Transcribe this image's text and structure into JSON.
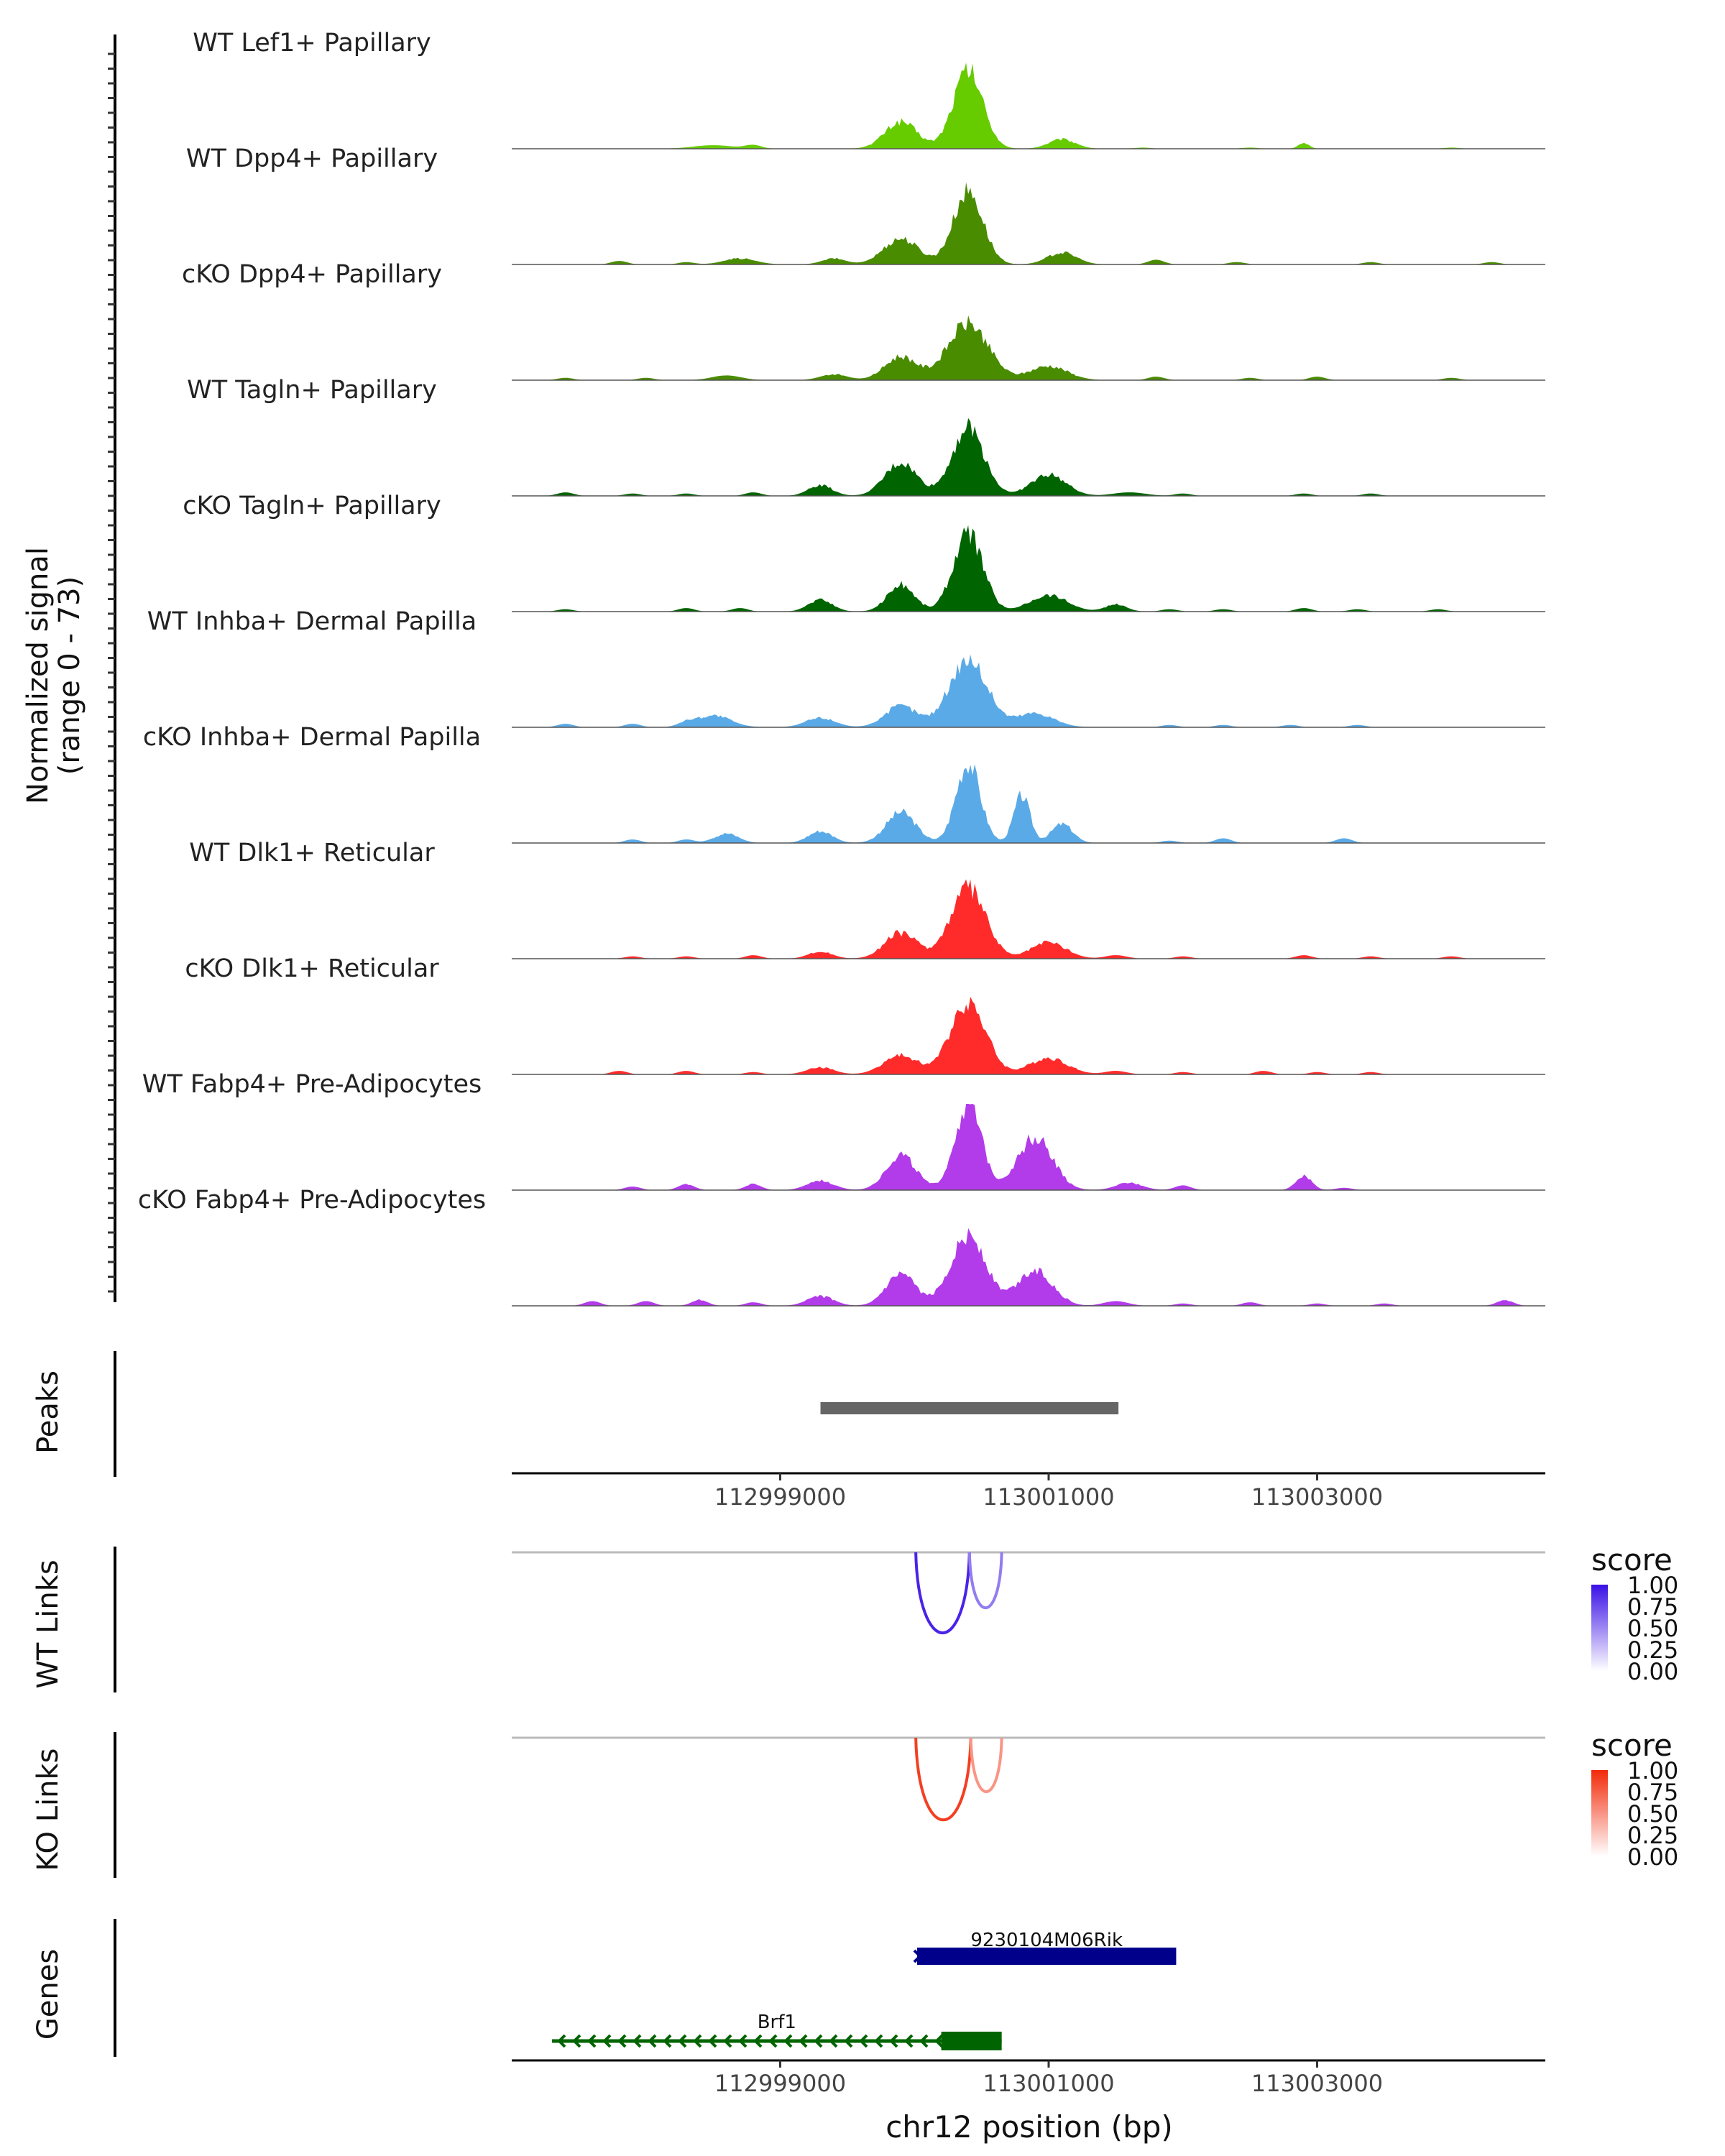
{
  "chart_data": {
    "type": "area",
    "title": "",
    "xlabel": "chr12 position (bp)",
    "region": {
      "chrom": "chr12",
      "start": 112997000,
      "end": 113004700
    },
    "x_ticks": [
      "112999000",
      "113001000",
      "113003000"
    ],
    "x_tick_values": [
      112999000,
      113001000,
      113003000
    ],
    "coverage": {
      "ylabel_line1": "Normalized signal",
      "ylabel_line2": "(range 0 - 73)",
      "ylim": [
        0,
        73
      ],
      "tracks": [
        {
          "name": "WT Lef1+ Papillary",
          "color": "#66cc00",
          "peaks": [
            [
              113000400,
              66,
              110
            ],
            [
              112999900,
              23,
              120
            ],
            [
              113001100,
              8,
              100
            ],
            [
              112998500,
              3,
              150
            ],
            [
              113002900,
              5,
              40
            ]
          ],
          "noise": [
            [
              112998800,
              3
            ],
            [
              113001700,
              1
            ],
            [
              113002500,
              1
            ],
            [
              113004000,
              1
            ]
          ]
        },
        {
          "name": "WT Dpp4+ Papillary",
          "color": "#4a8c00",
          "peaks": [
            [
              113000400,
              62,
              110
            ],
            [
              112999900,
              22,
              130
            ],
            [
              113001100,
              10,
              110
            ],
            [
              112999400,
              5,
              90
            ],
            [
              112998700,
              5,
              120
            ]
          ],
          "noise": [
            [
              112997800,
              3
            ],
            [
              112998300,
              2
            ],
            [
              113001800,
              4
            ],
            [
              113002400,
              2
            ],
            [
              113003400,
              2
            ],
            [
              113004300,
              2
            ]
          ]
        },
        {
          "name": "cKO Dpp4+ Papillary",
          "color": "#4a8c00",
          "peaks": [
            [
              113000400,
              48,
              150
            ],
            [
              112999900,
              20,
              120
            ],
            [
              113001000,
              12,
              140
            ],
            [
              112999400,
              5,
              100
            ],
            [
              112998600,
              4,
              110
            ]
          ],
          "noise": [
            [
              112997400,
              2
            ],
            [
              112998000,
              2
            ],
            [
              113001800,
              3
            ],
            [
              113002500,
              2
            ],
            [
              113003000,
              3
            ],
            [
              113004000,
              2
            ]
          ]
        },
        {
          "name": "WT Tagln+ Papillary",
          "color": "#006400",
          "peaks": [
            [
              113000400,
              58,
              120
            ],
            [
              112999900,
              28,
              120
            ],
            [
              113001000,
              18,
              130
            ],
            [
              112999300,
              9,
              90
            ],
            [
              113001600,
              3,
              120
            ]
          ],
          "noise": [
            [
              112997400,
              3
            ],
            [
              112997900,
              2
            ],
            [
              112998300,
              2
            ],
            [
              112998800,
              3
            ],
            [
              113002000,
              2
            ],
            [
              113002900,
              2
            ],
            [
              113003400,
              2
            ]
          ]
        },
        {
          "name": "cKO Tagln+ Papillary",
          "color": "#006400",
          "peaks": [
            [
              113000400,
              66,
              110
            ],
            [
              112999900,
              23,
              100
            ],
            [
              113001000,
              14,
              140
            ],
            [
              112999300,
              10,
              90
            ],
            [
              113001500,
              6,
              80
            ]
          ],
          "noise": [
            [
              112997400,
              2
            ],
            [
              112998300,
              3
            ],
            [
              112998700,
              3
            ],
            [
              113001900,
              2
            ],
            [
              113002300,
              2
            ],
            [
              113002900,
              3
            ],
            [
              113003300,
              2
            ],
            [
              113003900,
              2
            ]
          ]
        },
        {
          "name": "WT Inhba+ Dermal Papilla",
          "color": "#5aaae8",
          "peaks": [
            [
              113000400,
              58,
              140
            ],
            [
              112999900,
              18,
              120
            ],
            [
              113000900,
              12,
              140
            ],
            [
              112999300,
              8,
              110
            ],
            [
              112998500,
              10,
              130
            ]
          ],
          "noise": [
            [
              112997400,
              3
            ],
            [
              112997900,
              3
            ],
            [
              112998300,
              3
            ],
            [
              113001900,
              2
            ],
            [
              113002300,
              2
            ],
            [
              113002800,
              2
            ],
            [
              113003300,
              2
            ]
          ]
        },
        {
          "name": "cKO Inhba+ Dermal Papilla",
          "color": "#5aaae8",
          "peaks": [
            [
              113000400,
              68,
              90
            ],
            [
              112999900,
              26,
              110
            ],
            [
              113000800,
              40,
              60
            ],
            [
              113001100,
              16,
              80
            ],
            [
              112999300,
              10,
              90
            ],
            [
              112998600,
              8,
              90
            ]
          ],
          "noise": [
            [
              112997900,
              3
            ],
            [
              112998300,
              3
            ],
            [
              113001900,
              2
            ],
            [
              113002300,
              4
            ],
            [
              113003200,
              4
            ]
          ]
        },
        {
          "name": "WT Dlk1+ Reticular",
          "color": "#ff2b2b",
          "peaks": [
            [
              113000400,
              60,
              130
            ],
            [
              112999900,
              22,
              120
            ],
            [
              113001000,
              14,
              130
            ],
            [
              112999300,
              6,
              90
            ],
            [
              113001500,
              3,
              80
            ]
          ],
          "noise": [
            [
              112997900,
              2
            ],
            [
              112998300,
              2
            ],
            [
              112998800,
              3
            ],
            [
              113002000,
              2
            ],
            [
              113002900,
              3
            ],
            [
              113003400,
              2
            ],
            [
              113004000,
              2
            ]
          ]
        },
        {
          "name": "cKO Dlk1+ Reticular",
          "color": "#ff2b2b",
          "peaks": [
            [
              113000400,
              62,
              130
            ],
            [
              112999900,
              16,
              130
            ],
            [
              113001000,
              14,
              140
            ],
            [
              112999300,
              6,
              100
            ],
            [
              113001500,
              3,
              80
            ]
          ],
          "noise": [
            [
              112997800,
              3
            ],
            [
              112998300,
              3
            ],
            [
              112998800,
              2
            ],
            [
              113002000,
              2
            ],
            [
              113002600,
              3
            ],
            [
              113003000,
              2
            ],
            [
              113003400,
              2
            ]
          ]
        },
        {
          "name": "WT Fabp4+ Pre-Adipocytes",
          "color": "#b23bea",
          "peaks": [
            [
              113000400,
              72,
              100
            ],
            [
              112999900,
              30,
              110
            ],
            [
              113000900,
              45,
              130
            ],
            [
              112999300,
              8,
              100
            ],
            [
              113001600,
              6,
              100
            ],
            [
              113002900,
              12,
              60
            ]
          ],
          "noise": [
            [
              112997900,
              3
            ],
            [
              112998300,
              5
            ],
            [
              112998800,
              5
            ],
            [
              113002000,
              4
            ],
            [
              113003200,
              2
            ]
          ]
        },
        {
          "name": "cKO Fabp4+ Pre-Adipocytes",
          "color": "#b23bea",
          "peaks": [
            [
              113000400,
              60,
              130
            ],
            [
              112999900,
              26,
              110
            ],
            [
              113000900,
              30,
              130
            ],
            [
              112999300,
              8,
              100
            ],
            [
              113001500,
              4,
              90
            ]
          ],
          "noise": [
            [
              112997600,
              4
            ],
            [
              112998000,
              4
            ],
            [
              112998400,
              5
            ],
            [
              112998800,
              3
            ],
            [
              113002000,
              2
            ],
            [
              113002500,
              3
            ],
            [
              113003000,
              2
            ],
            [
              113003500,
              2
            ],
            [
              113004400,
              5
            ]
          ]
        }
      ]
    },
    "peaks_track": {
      "label": "Peaks",
      "color": "#666666",
      "ranges": [
        [
          112999300,
          113001520
        ]
      ]
    },
    "links": [
      {
        "label": "WT Links",
        "legend_title": "score",
        "color_high": "#3a10e6",
        "color_low": "#ffffff",
        "legend_ticks": [
          "1.00",
          "0.75",
          "0.50",
          "0.25",
          "0.00"
        ],
        "arcs": [
          {
            "start": 113000010,
            "end": 113000410,
            "score": 0.92
          },
          {
            "start": 113000410,
            "end": 113000650,
            "score": 0.55
          }
        ]
      },
      {
        "label": "KO Links",
        "legend_title": "score",
        "color_high": "#f22a0a",
        "color_low": "#ffffff",
        "legend_ticks": [
          "1.00",
          "0.75",
          "0.50",
          "0.25",
          "0.00"
        ],
        "arcs": [
          {
            "start": 113000010,
            "end": 113000420,
            "score": 0.9
          },
          {
            "start": 113000420,
            "end": 113000650,
            "score": 0.5
          }
        ]
      }
    ],
    "genes": {
      "label": "Genes",
      "items": [
        {
          "name": "9230104M06Rik",
          "start": 113000020,
          "end": 113001950,
          "strand": "-",
          "color": "#00008b",
          "row": 0
        },
        {
          "name": "Brf1",
          "start": 112997300,
          "end": 113000650,
          "strand": "-",
          "color": "#006400",
          "row": 1,
          "exon": [
            113000200,
            113000650
          ]
        }
      ]
    }
  }
}
